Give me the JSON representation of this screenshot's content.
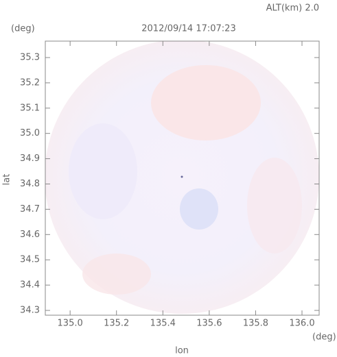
{
  "chart_data": {
    "type": "radar",
    "title": "2012/09/14 17:07:23",
    "annotation": "ALT(km) 2.0",
    "ylabel": "lat",
    "yunit": "(deg)",
    "xlabel": "lon",
    "xunit": "(deg)",
    "xlim": [
      134.893,
      136.074
    ],
    "ylim": [
      34.281,
      35.365
    ],
    "xticks": [
      {
        "value": 135,
        "label": "135.0"
      },
      135.2,
      135.4,
      135.6,
      135.8,
      {
        "value": 136,
        "label": "136.0"
      }
    ],
    "yticks": [
      {
        "value": 34.3,
        "label": "34.3"
      },
      34.4,
      34.5,
      34.6,
      34.7,
      34.8,
      34.9,
      {
        "value": 35,
        "label": "35.0"
      },
      35.1,
      35.2,
      35.3
    ]
  }
}
